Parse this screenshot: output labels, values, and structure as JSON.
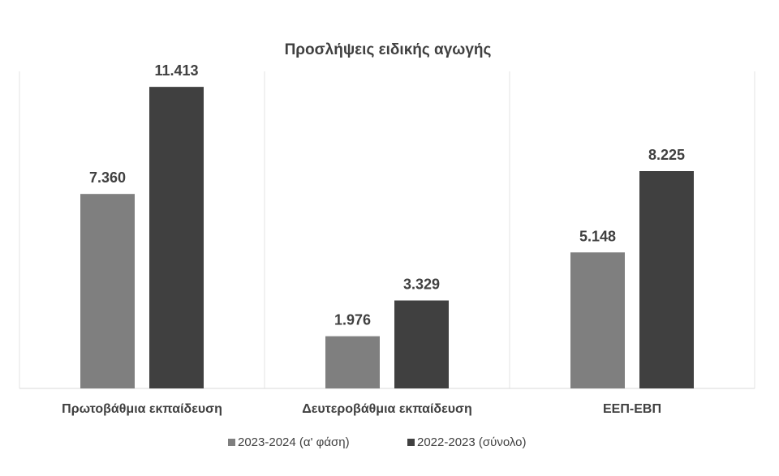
{
  "chart_data": {
    "type": "bar",
    "title": "Προσλήψεις ειδικής αγωγής",
    "categories": [
      "Πρωτοβάθμια εκπαίδευση",
      "Δευτεροβάθμια εκπαίδευση",
      "ΕΕΠ-ΕΒΠ"
    ],
    "series": [
      {
        "name": "2023-2024 (α' φάση)",
        "values": [
          7360,
          1976,
          5148
        ],
        "labels": [
          "7.360",
          "1.976",
          "5.148"
        ],
        "color": "#7f7f7f"
      },
      {
        "name": "2022-2023 (σύνολο)",
        "values": [
          11413,
          3329,
          8225
        ],
        "labels": [
          "11.413",
          "3.329",
          "8.225"
        ],
        "color": "#404040"
      }
    ],
    "ylim": [
      0,
      12000
    ],
    "grid": false,
    "category_separators": true,
    "legend_position": "bottom"
  }
}
